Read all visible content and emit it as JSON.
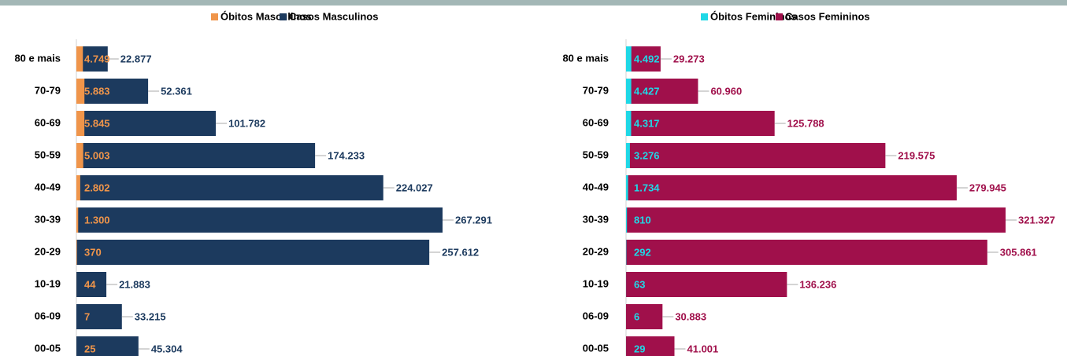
{
  "chart_data": [
    {
      "type": "bar",
      "orientation": "horizontal",
      "categories": [
        "80 e mais",
        "70-79",
        "60-69",
        "50-59",
        "40-49",
        "30-39",
        "20-29",
        "10-19",
        "06-09",
        "00-05"
      ],
      "series": [
        {
          "name": "Óbitos Masculinos",
          "color": "#f0954a",
          "values": [
            4749,
            5883,
            5845,
            5003,
            2802,
            1300,
            370,
            44,
            7,
            25
          ],
          "value_labels": [
            "4.749",
            "5.883",
            "5.845",
            "5.003",
            "2.802",
            "1.300",
            "370",
            "44",
            "7",
            "25"
          ]
        },
        {
          "name": "Casos Masculinos",
          "color": "#1c3a5e",
          "values": [
            22877,
            52361,
            101782,
            174233,
            224027,
            267291,
            257612,
            21883,
            33215,
            45304
          ],
          "value_labels": [
            "22.877",
            "52.361",
            "101.782",
            "174.233",
            "224.027",
            "267.291",
            "257.612",
            "21.883",
            "33.215",
            "45.304"
          ]
        }
      ]
    },
    {
      "type": "bar",
      "orientation": "horizontal",
      "categories": [
        "80 e mais",
        "70-79",
        "60-69",
        "50-59",
        "40-49",
        "30-39",
        "20-29",
        "10-19",
        "06-09",
        "00-05"
      ],
      "series": [
        {
          "name": "Óbitos Femininos",
          "color": "#1fd8e6",
          "values": [
            4492,
            4427,
            4317,
            3276,
            1734,
            810,
            292,
            63,
            6,
            29
          ],
          "value_labels": [
            "4.492",
            "4.427",
            "4.317",
            "3.276",
            "1.734",
            "810",
            "292",
            "63",
            "6",
            "29"
          ]
        },
        {
          "name": "Casos Femininos",
          "color": "#a0104b",
          "values": [
            29273,
            60960,
            125788,
            219575,
            279945,
            321327,
            305861,
            136236,
            30883,
            41001
          ],
          "value_labels": [
            "29.273",
            "60.960",
            "125.788",
            "219.575",
            "279.945",
            "321.327",
            "305.861",
            "136.236",
            "30.883",
            "41.001"
          ]
        }
      ]
    }
  ]
}
